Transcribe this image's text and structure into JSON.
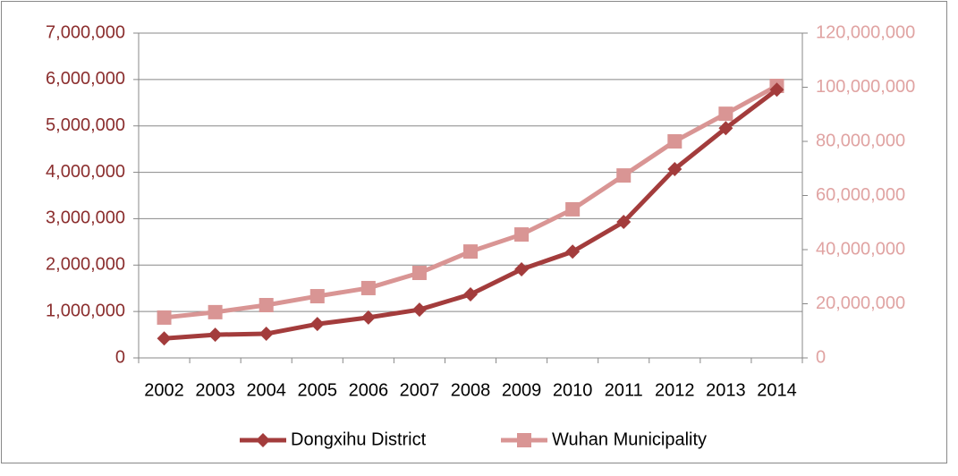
{
  "chart_data": {
    "type": "line",
    "categories": [
      "2002",
      "2003",
      "2004",
      "2005",
      "2006",
      "2007",
      "2008",
      "2009",
      "2010",
      "2011",
      "2012",
      "2013",
      "2014"
    ],
    "series": [
      {
        "name": "Dongxihu District",
        "color": "#a33c3c",
        "marker": "diamond",
        "axis": "y",
        "values": [
          420000,
          500000,
          520000,
          730000,
          870000,
          1040000,
          1370000,
          1910000,
          2290000,
          2930000,
          4070000,
          4950000,
          5780000
        ]
      },
      {
        "name": "Wuhan Municipality",
        "color": "#d99594",
        "marker": "square",
        "axis": "y2",
        "values": [
          14900000,
          16900000,
          19500000,
          22800000,
          25800000,
          31400000,
          39300000,
          45600000,
          54900000,
          67400000,
          80000000,
          90200000,
          100500000
        ]
      }
    ],
    "ylim": [
      0,
      7000000
    ],
    "yticks": [
      0,
      {
        "value": 1000000,
        "label": "1,000,000"
      },
      {
        "value": 2000000,
        "label": "2,000,000"
      },
      {
        "value": 3000000,
        "label": "3,000,000"
      },
      {
        "value": 4000000,
        "label": "4,000,000"
      },
      {
        "value": 5000000,
        "label": "5,000,000"
      },
      {
        "value": 6000000,
        "label": "6,000,000"
      },
      {
        "value": 7000000,
        "label": "7,000,000"
      }
    ],
    "y2lim": [
      0,
      120000000
    ],
    "y2ticks": [
      0,
      {
        "value": 20000000,
        "label": "20,000,000"
      },
      {
        "value": 40000000,
        "label": "40,000,000"
      },
      {
        "value": 60000000,
        "label": "60,000,000"
      },
      {
        "value": 80000000,
        "label": "80,000,000"
      },
      {
        "value": 100000000,
        "label": "100,000,000"
      },
      {
        "value": 120000000,
        "label": "120,000,000"
      }
    ],
    "ytick_color": "#8b2e2e",
    "y2tick_color": "#e0a3a2",
    "grid": true,
    "legend": "bottom"
  }
}
